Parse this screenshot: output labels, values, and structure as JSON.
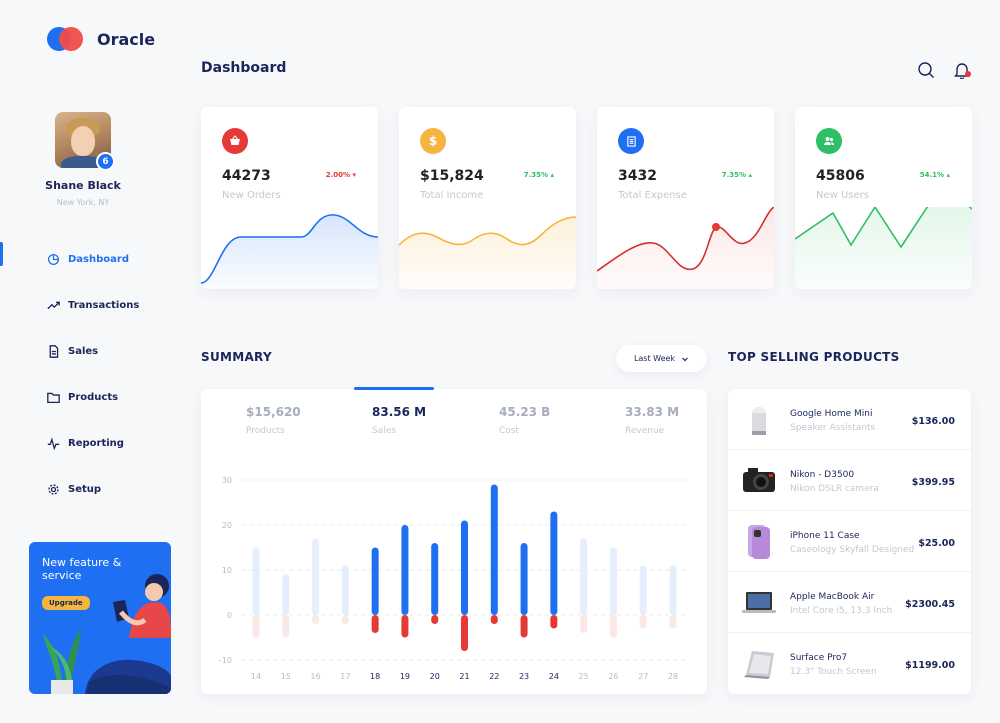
{
  "app": {
    "name": "Oracle"
  },
  "user": {
    "name": "Shane Black",
    "location": "New York, NY",
    "badge": "6"
  },
  "nav": {
    "items": [
      {
        "label": "Dashboard",
        "icon": "clock-pie-icon",
        "active": true
      },
      {
        "label": "Transactions",
        "icon": "trend-icon"
      },
      {
        "label": "Sales",
        "icon": "document-icon"
      },
      {
        "label": "Products",
        "icon": "folder-icon"
      },
      {
        "label": "Reporting",
        "icon": "pulse-icon"
      },
      {
        "label": "Setup",
        "icon": "gear-icon"
      }
    ]
  },
  "promo": {
    "title": "New feature & service",
    "button": "Upgrade"
  },
  "header": {
    "title": "Dashboard",
    "search_icon": "search-icon",
    "notification_icon": "bell-icon"
  },
  "stats": [
    {
      "value": "44273",
      "label": "New Orders",
      "change": "2.00%",
      "trend": "down",
      "color": "#e53935",
      "icon": "basket-icon"
    },
    {
      "value": "$15,824",
      "label": "Total Income",
      "change": "7.35%",
      "trend": "up",
      "color": "#f5b540",
      "icon": "dollar-icon"
    },
    {
      "value": "3432",
      "label": "Total Expense",
      "change": "7.35%",
      "trend": "up",
      "color": "#1f6ff2",
      "icon": "receipt-icon"
    },
    {
      "value": "45806",
      "label": "New Users",
      "change": "54.1%",
      "trend": "up",
      "color": "#2dbf64",
      "icon": "users-icon"
    }
  ],
  "summary": {
    "title": "SUMMARY",
    "period": "Last Week",
    "tabs": [
      {
        "value": "$15,620",
        "label": "Products"
      },
      {
        "value": "83.56 M",
        "label": "Sales",
        "active": true
      },
      {
        "value": "45.23 B",
        "label": "Cost"
      },
      {
        "value": "33.83 M",
        "label": "Revenue"
      }
    ]
  },
  "top_selling": {
    "title": "TOP SELLING PRODUCTS",
    "items": [
      {
        "name": "Google Home Mini",
        "subtitle": "Speaker Assistants",
        "price": "$136.00"
      },
      {
        "name": "Nikon - D3500",
        "subtitle": "Nikon DSLR camera",
        "price": "$399.95"
      },
      {
        "name": "iPhone 11 Case",
        "subtitle": "Caseology Skyfall Designed",
        "price": "$25.00"
      },
      {
        "name": "Apple MacBook Air",
        "subtitle": "Intel Core i5, 13.3 Inch",
        "price": "$2300.45"
      },
      {
        "name": "Surface Pro7",
        "subtitle": "12.3\" Touch Screen",
        "price": "$1199.00"
      }
    ]
  },
  "chart_data": {
    "type": "bar",
    "categories": [
      "14",
      "15",
      "16",
      "17",
      "18",
      "19",
      "20",
      "21",
      "22",
      "23",
      "24",
      "25",
      "26",
      "27",
      "28"
    ],
    "series": [
      {
        "values": [
          15,
          9,
          17,
          11,
          15,
          20,
          16,
          21,
          29,
          16,
          23,
          17,
          15,
          11,
          11
        ]
      },
      {
        "values": [
          -5,
          -5,
          -2,
          -2,
          -4,
          -5,
          -2,
          -8,
          -2,
          -5,
          -3,
          -4,
          -5,
          -3,
          -3
        ]
      }
    ],
    "highlighted": [
      "18",
      "19",
      "20",
      "21",
      "22",
      "23",
      "24"
    ],
    "ylim": [
      -10,
      30
    ],
    "yticks": [
      "30",
      "20",
      "10",
      "0",
      "-10"
    ],
    "colors": {
      "positive": "#1f6ff2",
      "negative": "#e53935",
      "muted_positive": "#e4eefc",
      "muted_negative": "#fbe7e7"
    },
    "grid": true
  }
}
